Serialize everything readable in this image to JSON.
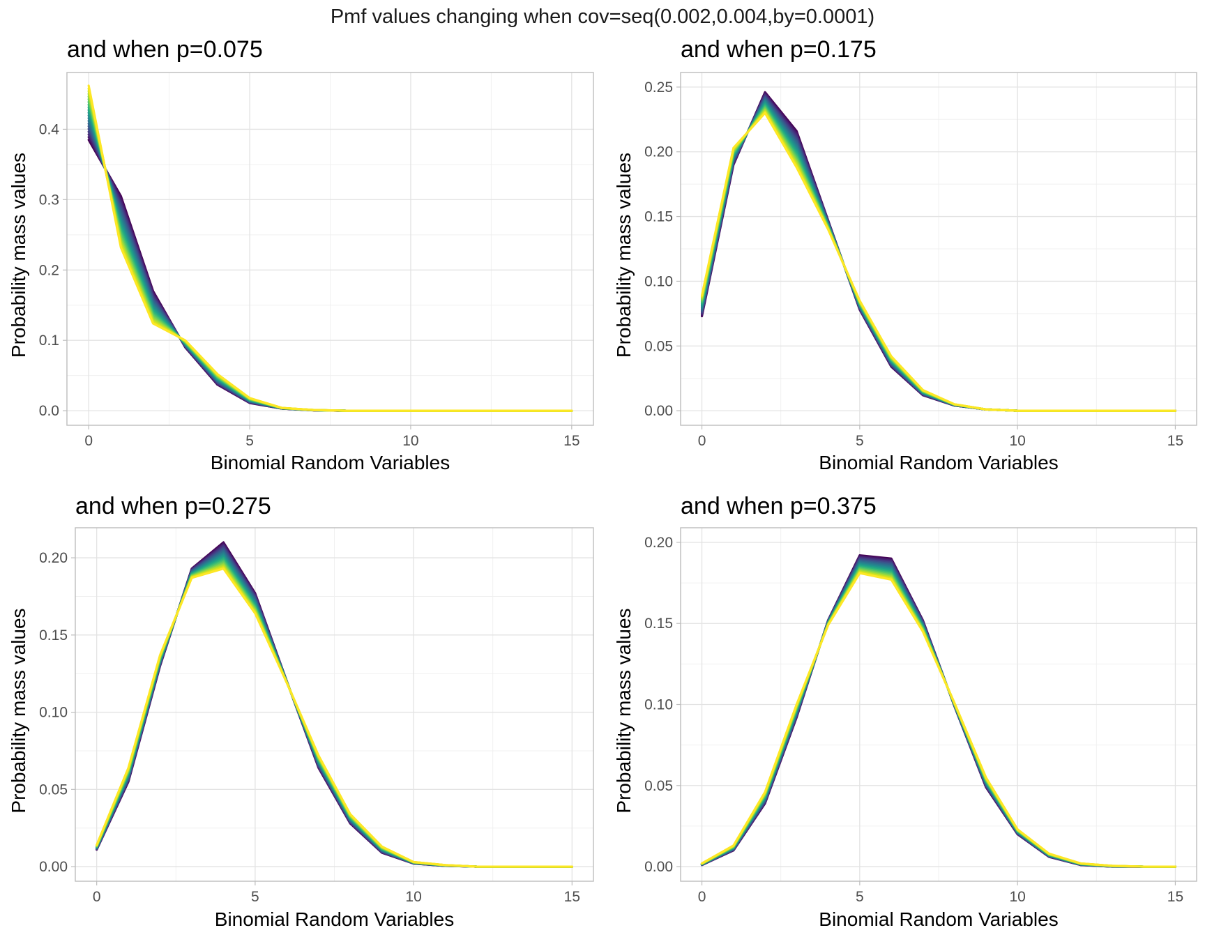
{
  "figure_title": "Pmf values changing when cov=seq(0.002,0.004,by=0.0001)",
  "colors": {
    "palette": "viridis",
    "first": "#440154",
    "last": "#FDE725",
    "grid_major": "#e3e3e3",
    "grid_minor": "#f0f0f0",
    "frame": "#bdbdbd"
  },
  "chart_data": [
    {
      "type": "line",
      "title": "and when p=0.075",
      "xlabel": "Binomial Random Variables",
      "ylabel": "Probability mass values",
      "xlim": [
        0,
        15
      ],
      "ylim": [
        0,
        0.46
      ],
      "x_ticks": [
        0,
        5,
        10,
        15
      ],
      "x_tick_labels": [
        "0",
        "5",
        "10",
        "15"
      ],
      "y_ticks": [
        0.0,
        0.1,
        0.2,
        0.3,
        0.4
      ],
      "y_tick_labels": [
        "0.0",
        "0.1",
        "0.2",
        "0.3",
        "0.4"
      ],
      "grid": true,
      "series_count": 21,
      "x": [
        0,
        1,
        2,
        3,
        4,
        5,
        6,
        7,
        8,
        9,
        10,
        11,
        12,
        13,
        14,
        15
      ],
      "first_series_values": [
        0.385,
        0.305,
        0.17,
        0.09,
        0.037,
        0.011,
        0.003,
        0.0005,
        0,
        0,
        0,
        0,
        0,
        0,
        0,
        0
      ],
      "last_series_values": [
        0.462,
        0.232,
        0.124,
        0.1,
        0.052,
        0.018,
        0.004,
        0.001,
        0,
        0,
        0,
        0,
        0,
        0,
        0,
        0
      ]
    },
    {
      "type": "line",
      "title": "and when p=0.175",
      "xlabel": "Binomial Random Variables",
      "ylabel": "Probability mass values",
      "xlim": [
        0,
        15
      ],
      "ylim": [
        0,
        0.25
      ],
      "x_ticks": [
        0,
        5,
        10,
        15
      ],
      "x_tick_labels": [
        "0",
        "5",
        "10",
        "15"
      ],
      "y_ticks": [
        0.0,
        0.05,
        0.1,
        0.15,
        0.2,
        0.25
      ],
      "y_tick_labels": [
        "0.00",
        "0.05",
        "0.10",
        "0.15",
        "0.20",
        "0.25"
      ],
      "grid": true,
      "series_count": 21,
      "x": [
        0,
        1,
        2,
        3,
        4,
        5,
        6,
        7,
        8,
        9,
        10,
        11,
        12,
        13,
        14,
        15
      ],
      "first_series_values": [
        0.073,
        0.19,
        0.246,
        0.216,
        0.147,
        0.078,
        0.034,
        0.012,
        0.004,
        0.001,
        0,
        0,
        0,
        0,
        0,
        0
      ],
      "last_series_values": [
        0.089,
        0.203,
        0.23,
        0.188,
        0.14,
        0.085,
        0.042,
        0.016,
        0.005,
        0.001,
        0,
        0,
        0,
        0,
        0,
        0
      ]
    },
    {
      "type": "line",
      "title": "and when p=0.275",
      "xlabel": "Binomial Random Variables",
      "ylabel": "Probability mass values",
      "xlim": [
        0,
        15
      ],
      "ylim": [
        0,
        0.21
      ],
      "x_ticks": [
        0,
        5,
        10,
        15
      ],
      "x_tick_labels": [
        "0",
        "5",
        "10",
        "15"
      ],
      "y_ticks": [
        0.0,
        0.05,
        0.1,
        0.15,
        0.2
      ],
      "y_tick_labels": [
        "0.00",
        "0.05",
        "0.10",
        "0.15",
        "0.20"
      ],
      "grid": true,
      "series_count": 21,
      "x": [
        0,
        1,
        2,
        3,
        4,
        5,
        6,
        7,
        8,
        9,
        10,
        11,
        12,
        13,
        14,
        15
      ],
      "first_series_values": [
        0.011,
        0.055,
        0.13,
        0.193,
        0.21,
        0.177,
        0.12,
        0.064,
        0.028,
        0.009,
        0.002,
        0.0005,
        0,
        0,
        0,
        0
      ],
      "last_series_values": [
        0.014,
        0.064,
        0.137,
        0.187,
        0.193,
        0.164,
        0.119,
        0.072,
        0.034,
        0.013,
        0.003,
        0.001,
        0,
        0,
        0,
        0
      ]
    },
    {
      "type": "line",
      "title": "and when p=0.375",
      "xlabel": "Binomial Random Variables",
      "ylabel": "Probability mass values",
      "xlim": [
        0,
        15
      ],
      "ylim": [
        0,
        0.2
      ],
      "x_ticks": [
        0,
        5,
        10,
        15
      ],
      "x_tick_labels": [
        "0",
        "5",
        "10",
        "15"
      ],
      "y_ticks": [
        0.0,
        0.05,
        0.1,
        0.15,
        0.2
      ],
      "y_tick_labels": [
        "0.00",
        "0.05",
        "0.10",
        "0.15",
        "0.20"
      ],
      "grid": true,
      "series_count": 21,
      "x": [
        0,
        1,
        2,
        3,
        4,
        5,
        6,
        7,
        8,
        9,
        10,
        11,
        12,
        13,
        14,
        15
      ],
      "first_series_values": [
        0.001,
        0.01,
        0.039,
        0.092,
        0.152,
        0.192,
        0.19,
        0.152,
        0.099,
        0.049,
        0.02,
        0.006,
        0.001,
        0,
        0,
        0
      ],
      "last_series_values": [
        0.002,
        0.013,
        0.046,
        0.1,
        0.149,
        0.181,
        0.177,
        0.145,
        0.101,
        0.055,
        0.023,
        0.008,
        0.002,
        0.0005,
        0,
        0
      ]
    }
  ]
}
